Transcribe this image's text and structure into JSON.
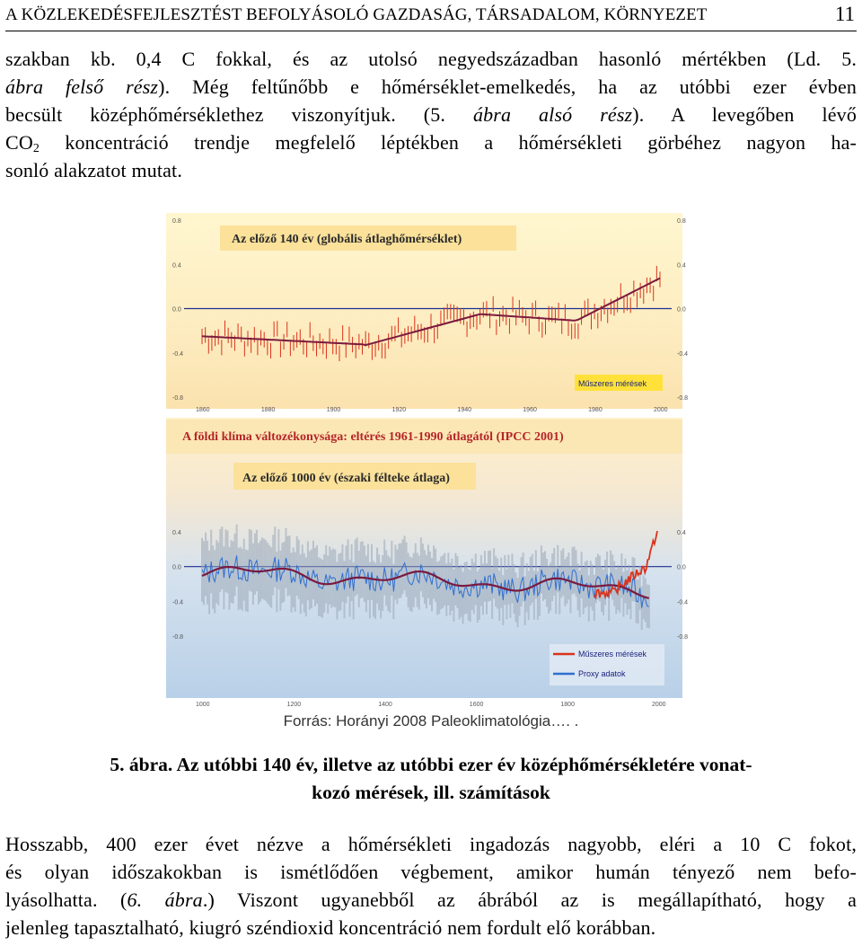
{
  "header": {
    "running_title": "A KÖZLEKEDÉSFEJLESZTÉST BEFOLYÁSOLÓ GAZDASÁG, TÁRSADALOM, KÖRNYEZET",
    "page_number": "11"
  },
  "paragraph1": {
    "l1": "szakban kb. 0,4 C fokkal, és az utolsó negyedszázadban hasonló mértékben (Ld. 5.",
    "l2_em": "ábra felső rész",
    "l2_rest": "). Még feltűnőbb e hőmérséklet-emelkedés, ha az utóbbi ezer évben",
    "l3_a": "becsült középhőmérséklethez viszonyítjuk. (5. ",
    "l3_em": "ábra alsó rész",
    "l3_b": "). A levegőben lévő",
    "l4_a": "CO",
    "l4_sub": "2",
    "l4_b": " koncentráció trendje megfelelő léptékben a hőmérsékleti görbéhez nagyon ha-",
    "l5": "sonló alakzatot mutat."
  },
  "figure": {
    "top_panel": {
      "title": "Az előző 140 év (globális átlaghőmérséklet)",
      "y_ticks": [
        "0.8",
        "0.4",
        "0.0",
        "-0.4",
        "-0.8"
      ],
      "x_ticks": [
        "1860",
        "1880",
        "1900",
        "1920",
        "1940",
        "1960",
        "1980",
        "2000"
      ],
      "legend": "Műszeres mérések"
    },
    "banner": "A földi klíma változékonysága: eltérés 1961-1990 átlagától  (IPCC 2001)",
    "bottom_panel": {
      "title": "Az előző 1000 év (északi félteke átlaga)",
      "y_ticks": [
        "0.4",
        "0.0",
        "-0.4",
        "-0.8"
      ],
      "x_ticks": [
        "1000",
        "1200",
        "1400",
        "1600",
        "1800",
        "2000"
      ],
      "legend": [
        "Műszeres mérések",
        "Proxy adatok"
      ]
    },
    "colors": {
      "panel_top": "#fff3c4",
      "panel_bottom": "#bcd4ea",
      "instrumental": "#d9331c",
      "proxy": "#2f6fd0",
      "smoothed": "#7a1a3e",
      "zero_line": "#1c2f8f"
    }
  },
  "source_text": "Forrás: Horányi 2008 Paleoklimatológia…. .",
  "caption": {
    "line1": "5. ábra. Az utóbbi 140 év, illetve az utóbbi ezer év középhőmérsékletére vonat-",
    "line2": "kozó mérések, ill. számítások"
  },
  "paragraph2": {
    "l1": "Hosszabb, 400 ezer évet nézve a hőmérsékleti ingadozás nagyobb, eléri a 10 C fokot,",
    "l2": "és olyan időszakokban is ismétlődően végbement, amikor humán tényező nem befo-",
    "l3_a": "lyásolhatta. (",
    "l3_em": "6. ábra",
    "l3_b": ".) Viszont ugyanebből az ábrából az is megállapítható, hogy a",
    "l4": "jelenleg tapasztalható, kiugró széndioxid koncentráció nem fordult elő korábban."
  }
}
